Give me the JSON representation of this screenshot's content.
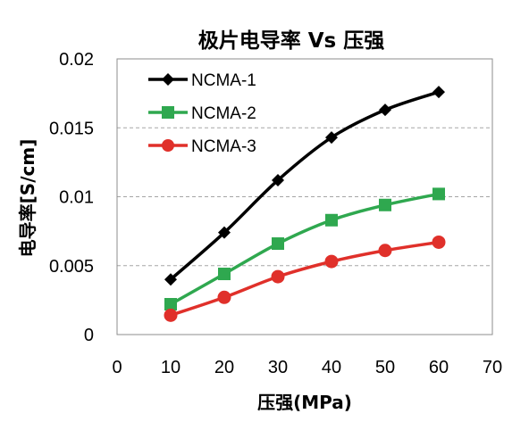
{
  "chart_data": {
    "type": "line",
    "title": "极片电导率 Vs 压强",
    "xlabel": "压强(MPa)",
    "ylabel": "电导率[S/cm]",
    "xlim": [
      0,
      70
    ],
    "ylim": [
      0,
      0.02
    ],
    "x_ticks": [
      "0",
      "10",
      "20",
      "30",
      "40",
      "50",
      "60",
      "70"
    ],
    "y_ticks": [
      "0",
      "0.005",
      "0.01",
      "0.015",
      "0.02"
    ],
    "grid": "horizontal dashed",
    "legend_position": "top-left",
    "x": [
      10,
      20,
      30,
      40,
      50,
      60
    ],
    "series": [
      {
        "name": "NCMA-1",
        "color": "#000000",
        "marker": "diamond",
        "values": [
          0.004,
          0.0074,
          0.0112,
          0.0143,
          0.0163,
          0.0176
        ]
      },
      {
        "name": "NCMA-2",
        "color": "#2fa84f",
        "marker": "square",
        "values": [
          0.0022,
          0.0044,
          0.0066,
          0.0083,
          0.0094,
          0.0102
        ]
      },
      {
        "name": "NCMA-3",
        "color": "#e0302a",
        "marker": "circle",
        "values": [
          0.0014,
          0.0027,
          0.0042,
          0.0053,
          0.0061,
          0.0067
        ]
      }
    ]
  }
}
